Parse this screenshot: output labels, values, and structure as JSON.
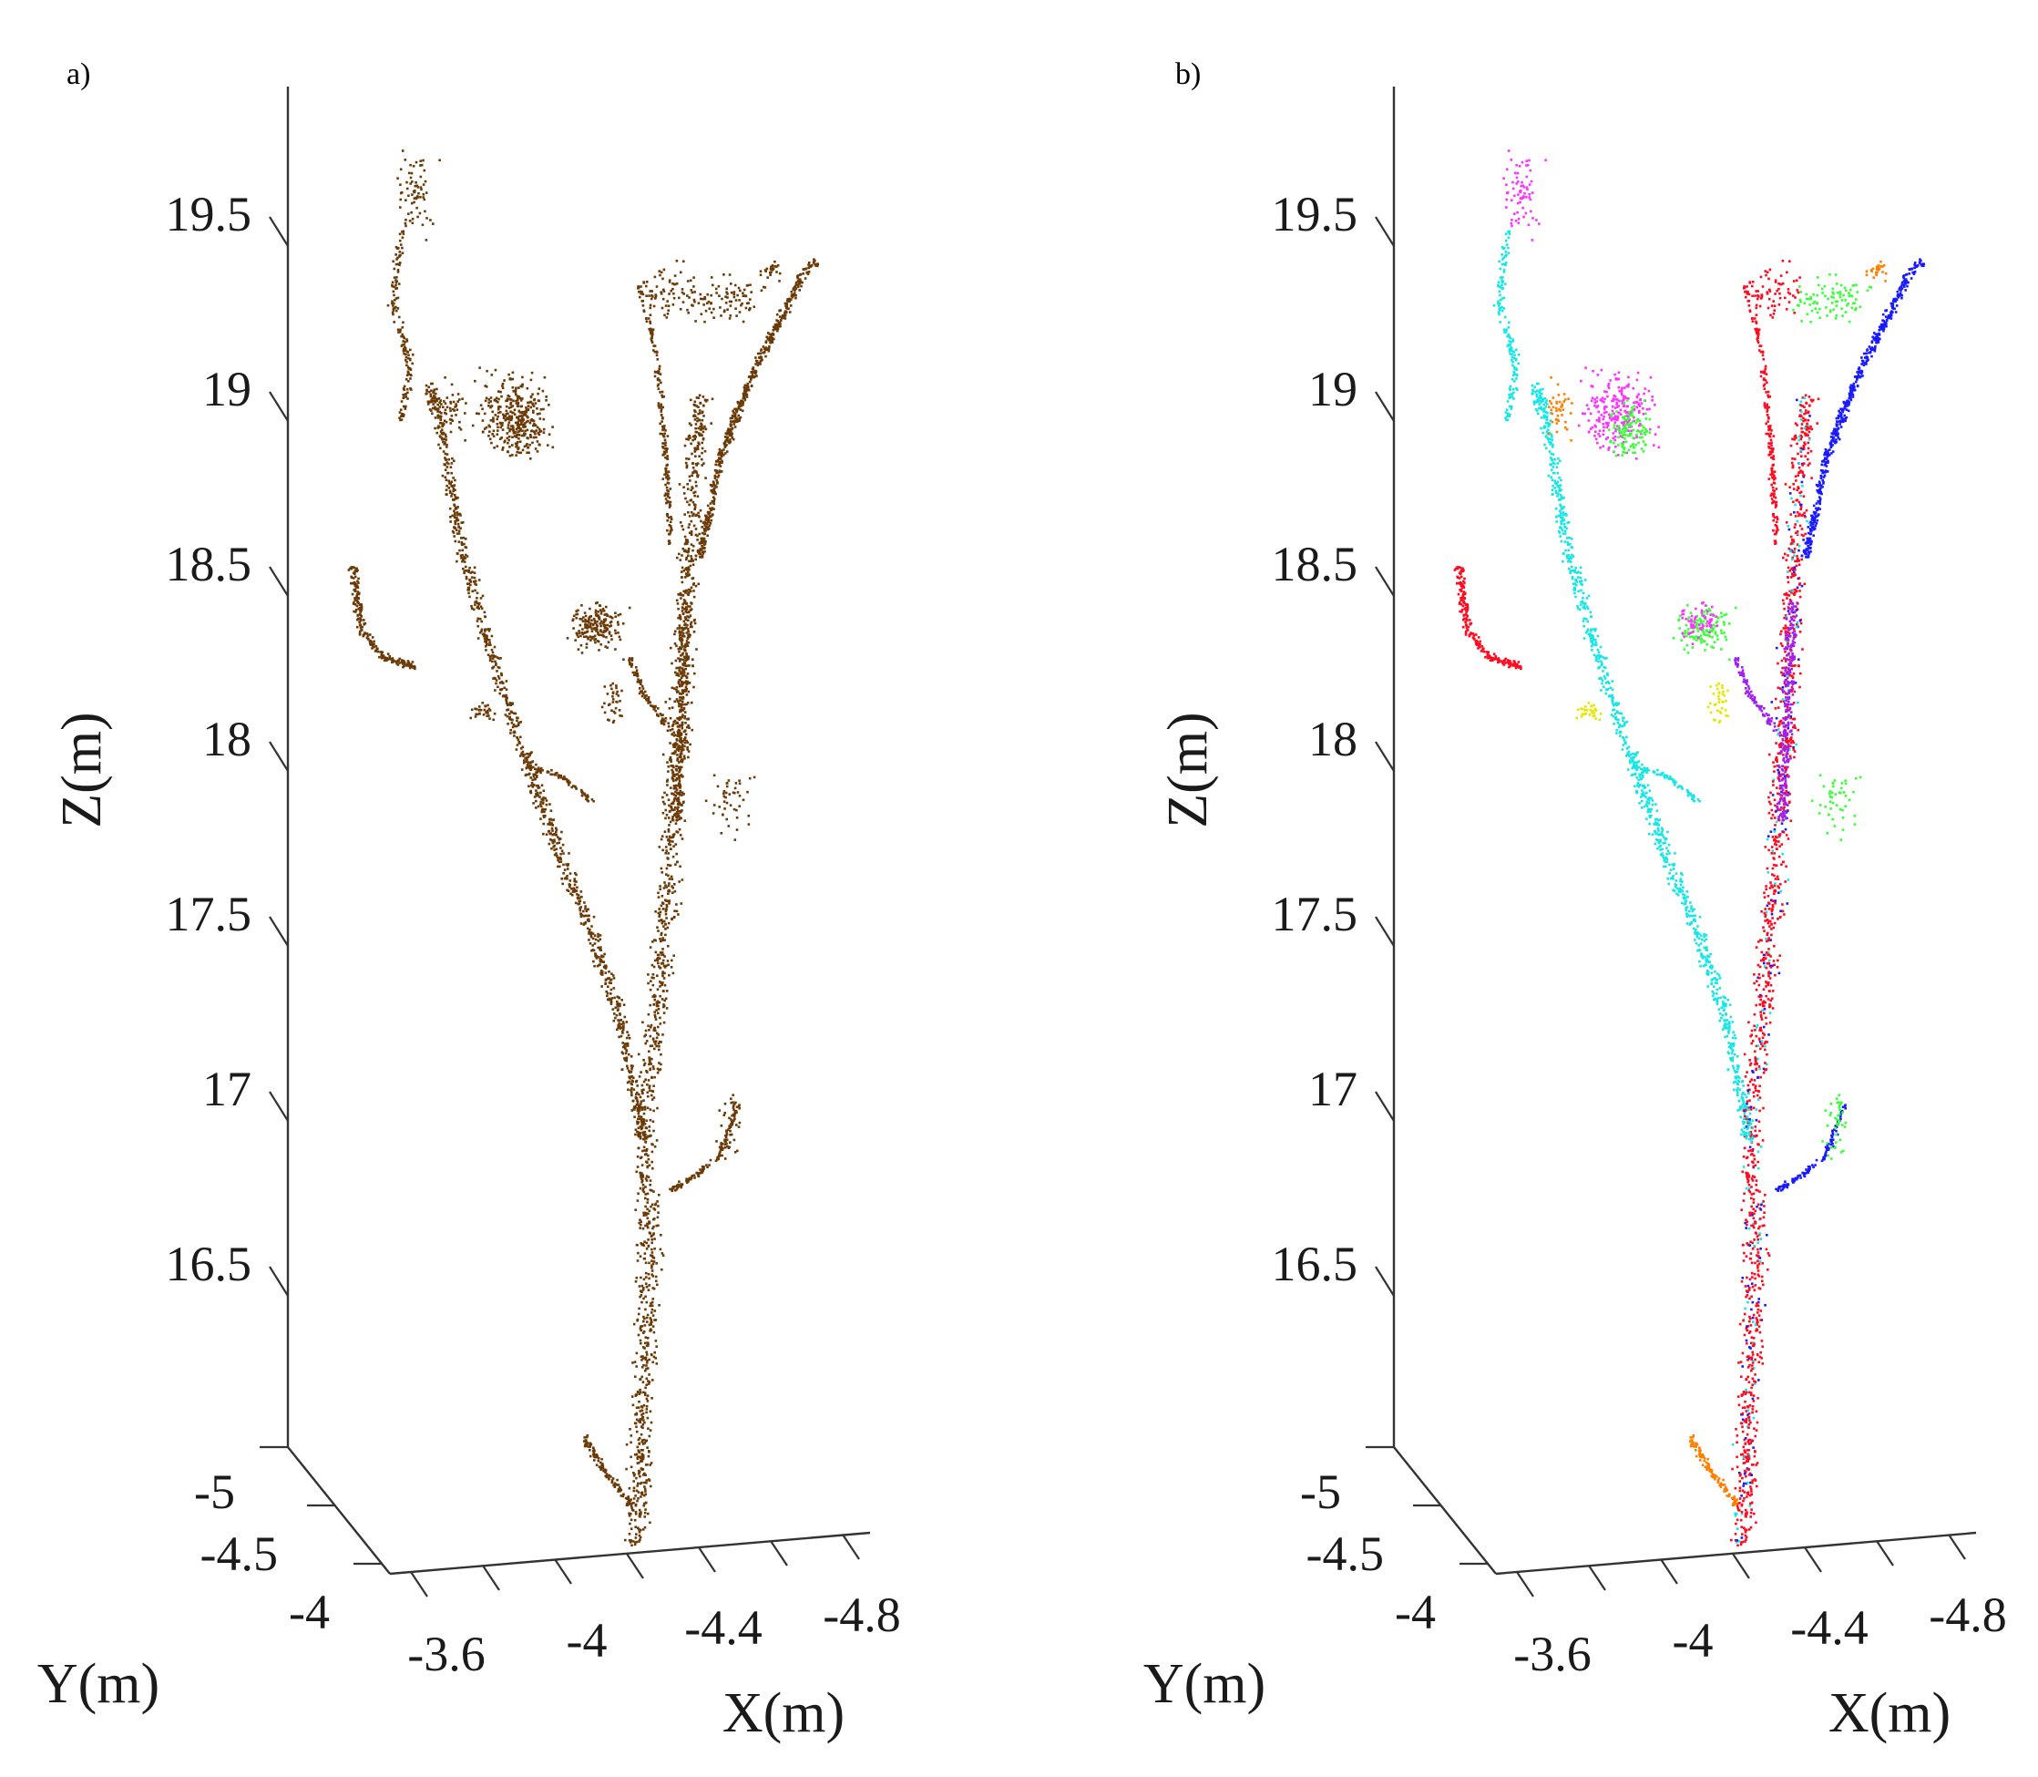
{
  "figure": {
    "panels": [
      {
        "label": "a)"
      },
      {
        "label": "b)"
      }
    ]
  },
  "chart_data": [
    {
      "type": "scatter",
      "panel": "a)",
      "description_3d": true,
      "xlabel": "X(m)",
      "ylabel": "Y(m)",
      "zlabel": "Z(m)",
      "x_ticks": [
        "-3.6",
        "-4",
        "-4.4",
        "-4.8"
      ],
      "y_ticks": [
        "-5",
        "-4.5",
        "-4"
      ],
      "z_ticks": [
        "16.5",
        "17",
        "17.5",
        "18",
        "18.5",
        "19",
        "19.5"
      ],
      "xlim": [
        -3.4,
        -4.9
      ],
      "ylim": [
        -4.0,
        -5.0
      ],
      "zlim": [
        16.0,
        19.8
      ],
      "grid": false,
      "series": [
        {
          "color": "#6b3a06",
          "values": "point-cloud"
        }
      ]
    },
    {
      "type": "scatter",
      "panel": "b)",
      "description_3d": true,
      "xlabel": "X(m)",
      "ylabel": "Y(m)",
      "zlabel": "Z(m)",
      "x_ticks": [
        "-3.6",
        "-4",
        "-4.4",
        "-4.8"
      ],
      "y_ticks": [
        "-5",
        "-4.5",
        "-4"
      ],
      "z_ticks": [
        "16.5",
        "17",
        "17.5",
        "18",
        "18.5",
        "19",
        "19.5"
      ],
      "xlim": [
        -3.4,
        -4.9
      ],
      "ylim": [
        -4.0,
        -5.0
      ],
      "zlim": [
        16.0,
        19.8
      ],
      "grid": false,
      "series": [
        {
          "color": "#ff0a1e",
          "values": "segment-red"
        },
        {
          "color": "#17e6e6",
          "values": "segment-cyan"
        },
        {
          "color": "#1a1aff",
          "values": "segment-blue"
        },
        {
          "color": "#a020f0",
          "values": "segment-purple"
        },
        {
          "color": "#39ff39",
          "values": "segment-green"
        },
        {
          "color": "#ff33ff",
          "values": "segment-magenta"
        },
        {
          "color": "#ff7f00",
          "values": "segment-orange"
        },
        {
          "color": "#e6e600",
          "values": "segment-yellow"
        }
      ]
    }
  ]
}
